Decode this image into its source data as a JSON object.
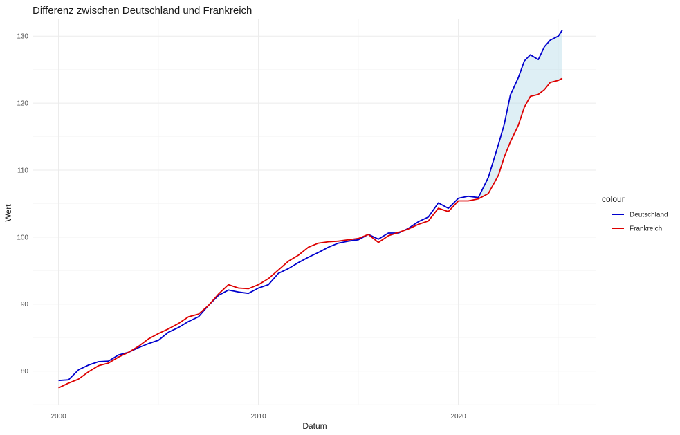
{
  "chart_data": {
    "type": "line",
    "title": "Differenz zwischen Deutschland und Frankreich",
    "xlabel": "Datum",
    "ylabel": "Wert",
    "xlim": [
      1998.7,
      2026.9
    ],
    "ylim": [
      74.9,
      132.5
    ],
    "x_ticks": [
      2000,
      2010,
      2020
    ],
    "x_tick_labels": [
      "2000",
      "2010",
      "2020"
    ],
    "x_minor_ticks": [
      2005,
      2015,
      2025
    ],
    "y_ticks": [
      80,
      90,
      100,
      110,
      120,
      130
    ],
    "y_tick_labels": [
      "80",
      "90",
      "100",
      "110",
      "120",
      "130"
    ],
    "y_minor_ticks": [
      75,
      85,
      95,
      105,
      115,
      125
    ],
    "grid": true,
    "legend": {
      "title": "colour",
      "position": "right"
    },
    "fill_between": {
      "from": 2021.0,
      "to": 2025.2,
      "color": "#add8e6"
    },
    "series": [
      {
        "name": "Deutschland",
        "color": "#0000cd",
        "x": [
          2000.0,
          2000.5,
          2001.0,
          2001.5,
          2002.0,
          2002.5,
          2003.0,
          2003.5,
          2004.0,
          2004.5,
          2005.0,
          2005.5,
          2006.0,
          2006.5,
          2007.0,
          2007.5,
          2008.0,
          2008.5,
          2009.0,
          2009.5,
          2010.0,
          2010.5,
          2011.0,
          2011.5,
          2012.0,
          2012.5,
          2013.0,
          2013.5,
          2014.0,
          2014.5,
          2015.0,
          2015.5,
          2016.0,
          2016.5,
          2017.0,
          2017.5,
          2018.0,
          2018.5,
          2019.0,
          2019.5,
          2020.0,
          2020.5,
          2021.0,
          2021.5,
          2022.0,
          2022.3,
          2022.6,
          2023.0,
          2023.3,
          2023.6,
          2024.0,
          2024.3,
          2024.6,
          2025.0,
          2025.2
        ],
        "y": [
          78.6,
          78.7,
          80.2,
          80.9,
          81.4,
          81.5,
          82.4,
          82.8,
          83.5,
          84.1,
          84.6,
          85.8,
          86.5,
          87.4,
          88.1,
          89.8,
          91.3,
          92.1,
          91.8,
          91.6,
          92.4,
          92.9,
          94.6,
          95.3,
          96.2,
          97.0,
          97.7,
          98.5,
          99.1,
          99.4,
          99.6,
          100.4,
          99.7,
          100.6,
          100.6,
          101.3,
          102.3,
          103.0,
          105.1,
          104.3,
          105.8,
          106.1,
          105.9,
          108.9,
          113.8,
          116.9,
          121.2,
          123.8,
          126.3,
          127.2,
          126.5,
          128.4,
          129.4,
          130.0,
          130.9
        ]
      },
      {
        "name": "Frankreich",
        "color": "#dd0000",
        "x": [
          2000.0,
          2000.5,
          2001.0,
          2001.5,
          2002.0,
          2002.5,
          2003.0,
          2003.5,
          2004.0,
          2004.5,
          2005.0,
          2005.5,
          2006.0,
          2006.5,
          2007.0,
          2007.5,
          2008.0,
          2008.5,
          2009.0,
          2009.5,
          2010.0,
          2010.5,
          2011.0,
          2011.5,
          2012.0,
          2012.5,
          2013.0,
          2013.5,
          2014.0,
          2014.5,
          2015.0,
          2015.5,
          2016.0,
          2016.5,
          2017.0,
          2017.5,
          2018.0,
          2018.5,
          2019.0,
          2019.5,
          2020.0,
          2020.5,
          2021.0,
          2021.5,
          2022.0,
          2022.3,
          2022.6,
          2023.0,
          2023.3,
          2023.6,
          2024.0,
          2024.3,
          2024.6,
          2025.0,
          2025.2
        ],
        "y": [
          77.5,
          78.2,
          78.8,
          79.9,
          80.8,
          81.2,
          82.1,
          82.8,
          83.7,
          84.8,
          85.6,
          86.3,
          87.1,
          88.1,
          88.5,
          89.8,
          91.5,
          92.9,
          92.4,
          92.3,
          92.9,
          93.8,
          95.1,
          96.4,
          97.3,
          98.5,
          99.1,
          99.3,
          99.4,
          99.6,
          99.8,
          100.4,
          99.2,
          100.2,
          100.7,
          101.2,
          101.9,
          102.4,
          104.3,
          103.8,
          105.4,
          105.4,
          105.7,
          106.5,
          109.2,
          112.0,
          114.2,
          116.7,
          119.4,
          121.0,
          121.3,
          122.0,
          123.1,
          123.4,
          123.7
        ]
      }
    ]
  }
}
